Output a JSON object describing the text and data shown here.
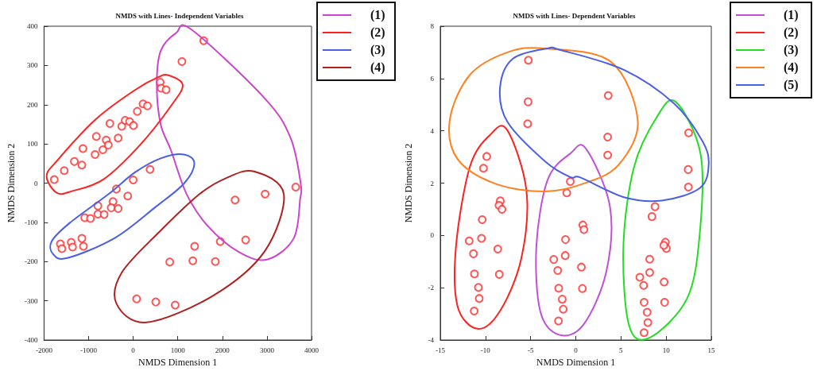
{
  "chart_data": [
    {
      "type": "scatter",
      "title": "NMDS with Lines- Independent Variables",
      "xlabel": "NMDS Dimension 1",
      "ylabel": "NMDS Dimension 2",
      "xlim": [
        -2000,
        4000
      ],
      "xticks": [
        -2000,
        -1000,
        0,
        1000,
        2000,
        3000,
        4000
      ],
      "ylim": [
        -400,
        400
      ],
      "yticks": [
        -400,
        -300,
        -200,
        -100,
        0,
        100,
        200,
        300,
        400
      ],
      "grid": false,
      "annotations": [
        "(1)",
        "(2)",
        "(3)",
        "(4)"
      ],
      "series": [
        {
          "marker": "circle",
          "color": "#ff2a2a",
          "x": [
            -1770,
            -1547,
            -1320,
            -1151,
            -1128,
            -855,
            -826,
            -680,
            -605,
            -558,
            -523,
            -337,
            -256,
            -180,
            -81,
            6,
            92,
            220,
            320,
            605,
            628,
            738,
            1093,
            1581,
            3645,
            0,
            378,
            -378,
            -122,
            -453,
            -494,
            -337,
            -791,
            -791,
            -651,
            -1087,
            -959,
            -1151,
            -1116,
            -1390,
            -1360,
            -1634,
            -1599,
            2285,
            2959,
            2523,
            1953,
            1378,
            1337,
            1843,
            820,
            76,
            506,
            942
          ],
          "values": [
            9,
            32,
            55,
            46,
            88,
            73,
            119,
            85,
            110,
            97,
            152,
            115,
            145,
            160,
            157,
            147,
            183,
            202,
            197,
            257,
            242,
            238,
            310,
            363,
            -10,
            8,
            35,
            -15,
            -33,
            -47,
            -63,
            -65,
            -58,
            -79,
            -80,
            -88,
            -90,
            -141,
            -161,
            -151,
            -163,
            -155,
            -167,
            -43,
            -28,
            -145,
            -149,
            -161,
            -198,
            -200,
            -201,
            -295,
            -303,
            -311
          ]
        }
      ]
    },
    {
      "type": "scatter",
      "title": "NMDS with Lines- Dependent Variables",
      "xlabel": "NMDS Dimension 1",
      "ylabel": "NMDS Dimension 2",
      "xlim": [
        -15,
        15
      ],
      "xticks": [
        -15,
        -10,
        -5,
        0,
        5,
        10,
        15
      ],
      "ylim": [
        -4,
        8
      ],
      "yticks": [
        -4,
        -2,
        0,
        2,
        4,
        6,
        8
      ],
      "grid": false,
      "annotations": [
        "(1)",
        "(2)",
        "(3)",
        "(4)",
        "(5)"
      ],
      "series": [
        {
          "marker": "circle",
          "color": "#ff2a2a",
          "x": [
            -5.25,
            -5.28,
            -5.33,
            -9.86,
            -10.22,
            -8.36,
            -8.5,
            -8.17,
            -10.36,
            -10.44,
            -11.8,
            -11.33,
            -8.64,
            -11.22,
            -8.47,
            -10.78,
            -10.69,
            -11.25,
            -0.61,
            -1.0,
            -1.14,
            -1.17,
            -2.44,
            -2.0,
            -1.89,
            -1.5,
            -1.39,
            -1.92,
            3.59,
            3.53,
            3.53,
            12.49,
            12.44,
            12.46,
            8.77,
            8.43,
            0.78,
            0.9,
            0.62,
            0.73,
            9.92,
            10.03,
            9.75,
            8.18,
            8.18,
            7.09,
            7.51,
            9.78,
            7.56,
            9.83,
            7.9,
            7.98,
            7.56
          ],
          "values": [
            6.7,
            5.11,
            4.27,
            3.02,
            2.57,
            1.32,
            1.15,
            1.0,
            0.6,
            -0.11,
            -0.21,
            -0.7,
            -0.52,
            -1.47,
            -1.49,
            -1.99,
            -2.41,
            -2.89,
            2.06,
            1.63,
            -0.16,
            -0.77,
            -0.92,
            -1.34,
            -2.02,
            -2.44,
            -2.82,
            -3.27,
            5.35,
            3.76,
            3.07,
            3.92,
            2.52,
            1.85,
            1.1,
            0.72,
            0.4,
            0.22,
            -1.21,
            -2.03,
            -0.26,
            -0.5,
            -0.38,
            -0.91,
            -1.42,
            -1.6,
            -1.91,
            -1.78,
            -2.56,
            -2.56,
            -2.94,
            -3.33,
            -3.72
          ]
        }
      ]
    }
  ]
}
